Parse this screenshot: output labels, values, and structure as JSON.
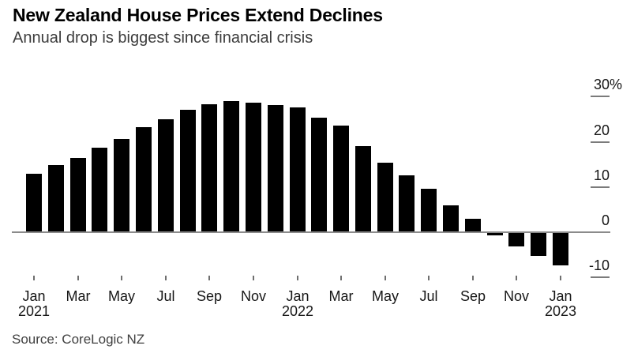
{
  "header": {
    "title": "New Zealand House Prices Extend Declines",
    "subtitle": "Annual drop is biggest since financial crisis"
  },
  "footer": {
    "source": "Source: CoreLogic NZ"
  },
  "chart_data": {
    "type": "bar",
    "title": "New Zealand House Prices Extend Declines",
    "subtitle": "Annual drop is biggest since financial crisis",
    "source": "Source: CoreLogic NZ",
    "unit": "percent, annual change",
    "categories": [
      "Jan 2021",
      "Feb 2021",
      "Mar 2021",
      "Apr 2021",
      "May 2021",
      "Jun 2021",
      "Jul 2021",
      "Aug 2021",
      "Sep 2021",
      "Oct 2021",
      "Nov 2021",
      "Dec 2021",
      "Jan 2022",
      "Feb 2022",
      "Mar 2022",
      "Apr 2022",
      "May 2022",
      "Jun 2022",
      "Jul 2022",
      "Aug 2022",
      "Sep 2022",
      "Oct 2022",
      "Nov 2022",
      "Dec 2022",
      "Jan 2023"
    ],
    "values": [
      12.8,
      14.6,
      16.2,
      18.5,
      20.4,
      23.0,
      24.9,
      26.9,
      28.1,
      28.8,
      28.5,
      28.0,
      27.4,
      25.2,
      23.4,
      18.8,
      15.2,
      12.4,
      9.4,
      5.8,
      2.8,
      -0.6,
      -3.0,
      -5.0,
      -7.2
    ],
    "ylim": [
      -12,
      31
    ],
    "grid": false,
    "legend": null,
    "bar_color": "#000000",
    "axis_color": "#7b7b7b",
    "y_axis": {
      "side": "right",
      "ticks": [
        {
          "label": "30%",
          "value": 30
        },
        {
          "label": "20",
          "value": 20
        },
        {
          "label": "10",
          "value": 10
        },
        {
          "label": "0",
          "value": 0
        },
        {
          "label": "-10",
          "value": -10
        }
      ]
    },
    "x_axis": {
      "ticks": [
        {
          "label": "Jan",
          "year": "2021",
          "index": 0
        },
        {
          "label": "Mar",
          "index": 2
        },
        {
          "label": "May",
          "index": 4
        },
        {
          "label": "Jul",
          "index": 6
        },
        {
          "label": "Sep",
          "index": 8
        },
        {
          "label": "Nov",
          "index": 10
        },
        {
          "label": "Jan",
          "year": "2022",
          "index": 12
        },
        {
          "label": "Mar",
          "index": 14
        },
        {
          "label": "May",
          "index": 16
        },
        {
          "label": "Jul",
          "index": 18
        },
        {
          "label": "Sep",
          "index": 20
        },
        {
          "label": "Nov",
          "index": 22
        },
        {
          "label": "Jan",
          "year": "2023",
          "index": 24
        }
      ]
    }
  }
}
